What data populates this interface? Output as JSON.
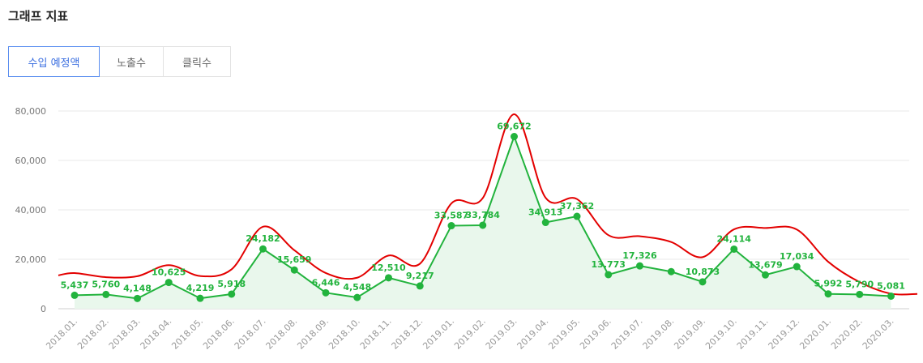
{
  "header": {
    "title": "그래프 지표"
  },
  "tabs": [
    {
      "label": "수입 예정액",
      "active": true
    },
    {
      "label": "노출수",
      "active": false
    },
    {
      "label": "클릭수",
      "active": false
    }
  ],
  "colors": {
    "accent": "#3b6fe0",
    "series": "#22b33d",
    "area": "#e9f7ec",
    "annotation": "#e30000",
    "grid": "#e8e8e8"
  },
  "chart_data": {
    "type": "area",
    "categories": [
      "2018.01.",
      "2018.02.",
      "2018.03.",
      "2018.04.",
      "2018.05.",
      "2018.06.",
      "2018.07.",
      "2018.08.",
      "2018.09.",
      "2018.10.",
      "2018.11.",
      "2018.12.",
      "2019.01.",
      "2019.02.",
      "2019.03.",
      "2019.04.",
      "2019.05.",
      "2019.06.",
      "2019.07.",
      "2019.08.",
      "2019.09.",
      "2019.10.",
      "2019.11.",
      "2019.12.",
      "2020.01.",
      "2020.02.",
      "2020.03."
    ],
    "series": [
      {
        "values": [
          5437,
          5760,
          4148,
          10625,
          4219,
          5918,
          24182,
          15659,
          6446,
          4548,
          12510,
          9217,
          33587,
          33784,
          69672,
          34913,
          37362,
          13773,
          17326,
          15000,
          10873,
          24114,
          13679,
          17034,
          5992,
          5790,
          5081
        ]
      }
    ],
    "data_labels": [
      "5,437",
      "5,760",
      "4,148",
      "10,625",
      "4,219",
      "5,918",
      "24,182",
      "15,659",
      "6,446",
      "4,548",
      "12,510",
      "9,217",
      "33,587",
      "33,784",
      "69,672",
      "34,913",
      "37,362",
      "13,773",
      "17,326",
      "",
      "10,873",
      "24,114",
      "13,679",
      "17,034",
      "5,992",
      "5,790",
      "5,081"
    ],
    "yticks": [
      "0",
      "20,000",
      "40,000",
      "60,000",
      "80,000"
    ],
    "ylim": [
      0,
      80000
    ],
    "grid": true,
    "xlabel": "",
    "ylabel": "",
    "annotation": {
      "type": "hand-drawn red envelope curve above the series"
    }
  }
}
